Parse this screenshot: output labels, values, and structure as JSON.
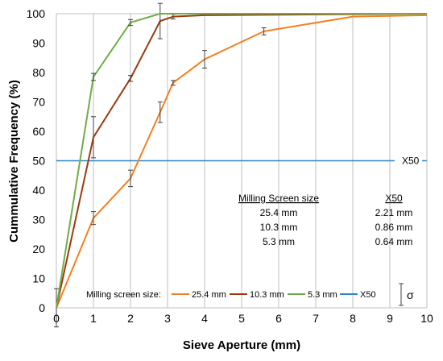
{
  "chart_data": {
    "type": "line",
    "title": "",
    "xlabel": "Sieve Aperture (mm)",
    "ylabel": "Cummulative Frequency (%)",
    "xlim": [
      0,
      10
    ],
    "ylim": [
      0,
      100
    ],
    "xticks": [
      "0",
      "1",
      "2",
      "3",
      "4",
      "5",
      "6",
      "7",
      "8",
      "9",
      "10"
    ],
    "yticks": [
      "0",
      "10",
      "20",
      "30",
      "40",
      "50",
      "60",
      "70",
      "80",
      "90",
      "100"
    ],
    "grid": "vertical",
    "colors": {
      "series_25_4": "#f57f20",
      "series_10_3": "#9c3a10",
      "series_5_3": "#70ad47",
      "x50": "#2e86c1",
      "grid": "#bfbfbf",
      "error_bar": "#404040"
    },
    "series": [
      {
        "name": "25.4 mm",
        "color": "#f57f20",
        "points": [
          {
            "x": 0,
            "y": 0,
            "err": 6.5
          },
          {
            "x": 1,
            "y": 30.5,
            "err": 2.2
          },
          {
            "x": 2,
            "y": 44,
            "err": 2.8
          },
          {
            "x": 2.8,
            "y": 66.5,
            "err": 3.5
          },
          {
            "x": 3.15,
            "y": 76.5,
            "err": 0.8
          },
          {
            "x": 4,
            "y": 84.5,
            "err": 3.0
          },
          {
            "x": 5.6,
            "y": 94,
            "err": 1.2
          },
          {
            "x": 8,
            "y": 99,
            "err": 0
          },
          {
            "x": 10,
            "y": 99.5,
            "err": 0
          }
        ]
      },
      {
        "name": "10.3 mm",
        "color": "#9c3a10",
        "points": [
          {
            "x": 0,
            "y": 0,
            "err": 0
          },
          {
            "x": 1,
            "y": 58,
            "err": 7.0
          },
          {
            "x": 2,
            "y": 78,
            "err": 1.0
          },
          {
            "x": 2.8,
            "y": 97.5,
            "err": 6.0
          },
          {
            "x": 3.15,
            "y": 99,
            "err": 0.8
          },
          {
            "x": 4,
            "y": 99.5,
            "err": 0
          },
          {
            "x": 10,
            "y": 100,
            "err": 0
          }
        ]
      },
      {
        "name": "5.3 mm",
        "color": "#70ad47",
        "points": [
          {
            "x": 0,
            "y": 0,
            "err": 0
          },
          {
            "x": 1,
            "y": 78.5,
            "err": 1.2
          },
          {
            "x": 2,
            "y": 97,
            "err": 1.0
          },
          {
            "x": 2.8,
            "y": 100,
            "err": 0
          },
          {
            "x": 10,
            "y": 100,
            "err": 0
          }
        ]
      }
    ],
    "reference_line": {
      "name": "X50",
      "y": 50,
      "color": "#2e86c1",
      "label": "X50"
    },
    "legend": {
      "title": "Milling screen size:",
      "placement": "bottom",
      "entries": [
        "25.4 mm",
        "10.3 mm",
        "5.3 mm",
        "X50"
      ],
      "sigma_label": "σ"
    },
    "table": {
      "col1_header": "Milling Screen size",
      "col2_header": "X50",
      "rows": [
        {
          "size": "25.4 mm",
          "x50": "2.21 mm"
        },
        {
          "size": "10.3 mm",
          "x50": "0.86 mm"
        },
        {
          "size": "5.3 mm",
          "x50": "0.64 mm"
        }
      ]
    }
  }
}
